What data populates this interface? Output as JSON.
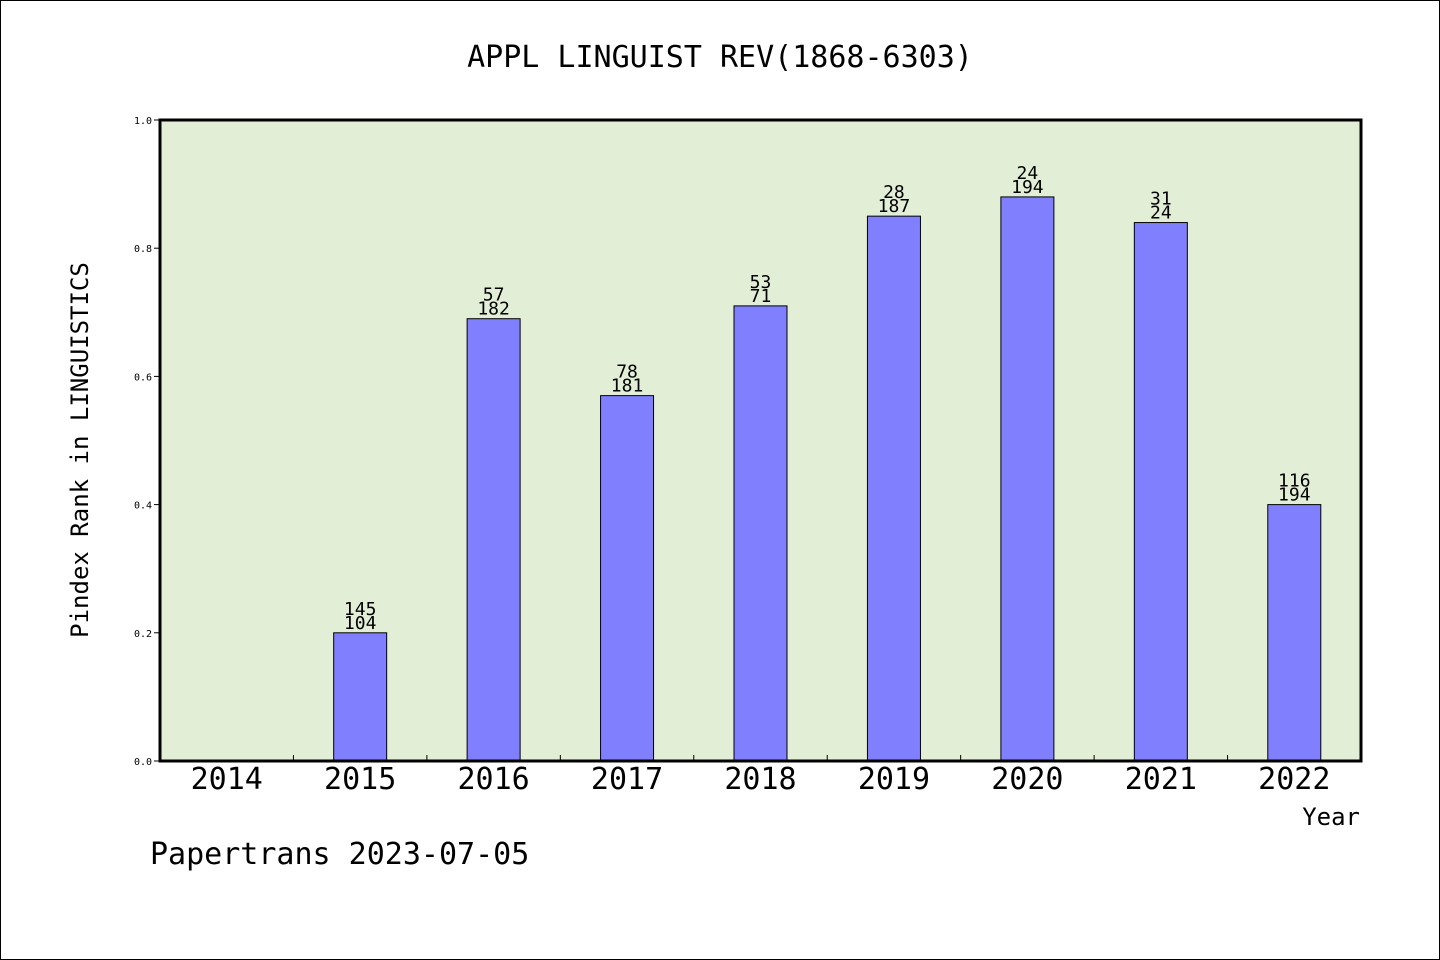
{
  "chart_data": {
    "type": "bar",
    "title": "APPL LINGUIST REV(1868-6303)",
    "xlabel": "Year",
    "ylabel": "Pindex Rank in LINGUISTICS",
    "ylim": [
      0,
      1.0
    ],
    "yticks": [
      "0.0",
      "0.2",
      "0.4",
      "0.6",
      "0.8",
      "1.0"
    ],
    "categories": [
      "2014",
      "2015",
      "2016",
      "2017",
      "2018",
      "2019",
      "2020",
      "2021",
      "2022"
    ],
    "values": [
      null,
      0.2,
      0.69,
      0.57,
      0.71,
      0.85,
      0.88,
      0.84,
      0.4
    ],
    "labels_top": [
      "",
      "145",
      "57",
      "78",
      "53",
      "28",
      "24",
      "31",
      "116"
    ],
    "labels_bottom": [
      "",
      "104",
      "182",
      "181",
      "71",
      "187",
      "194",
      "24",
      "194"
    ],
    "grid": false,
    "legend": "none",
    "colors": {
      "plot_background": "#e2efd6",
      "bar": "#8080ff"
    }
  },
  "footer": {
    "text": "Papertrans 2023-07-05"
  }
}
